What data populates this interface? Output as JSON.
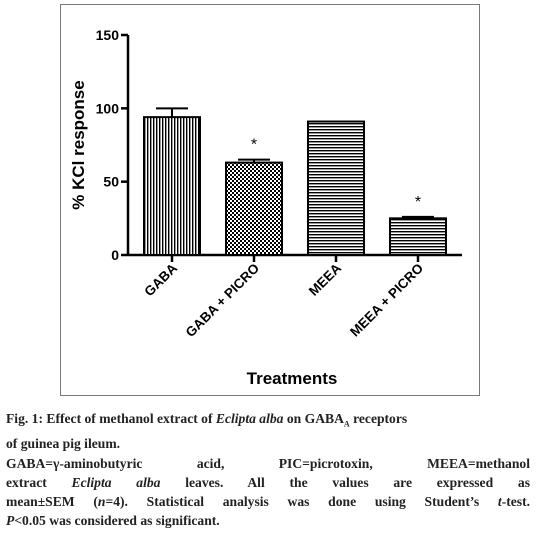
{
  "chart_data": {
    "type": "bar",
    "categories": [
      "GABA",
      "GABA + PICRO",
      "MEEA",
      "MEEA + PICRO"
    ],
    "values": [
      94,
      63,
      91,
      25
    ],
    "errors": [
      6,
      2,
      0,
      1
    ],
    "significance": [
      "",
      "*",
      "",
      "*"
    ],
    "patterns": [
      "vertical-lines",
      "checkerboard",
      "horizontal-lines",
      "horizontal-lines"
    ],
    "xlabel": "Treatments",
    "ylabel": "% KCl response",
    "ylim": [
      0,
      150
    ],
    "yticks": [
      "0",
      "50",
      "100",
      "150"
    ],
    "grid": false
  },
  "caption": {
    "fig_label": "Fig. 1: Effect of methanol extract of ",
    "species": "Eclipta alba",
    "on": " on GABA",
    "sub": "A",
    "receptor": " receptors",
    "line1b": "of guinea pig ileum.",
    "line2": "GABA=γ-aminobutyric acid, PIC=picrotoxin, MEEA=methanol",
    "line3a": "extract ",
    "line3b": " leaves. All the values are expressed as",
    "line4a": "mean±SEM (",
    "line4n": "n",
    "line4b": "=4). Statistical analysis was done using Student’s ",
    "line4t": "t",
    "line4c": "-test.",
    "line5p": "P",
    "line5": "<0.05 was considered as significant."
  }
}
